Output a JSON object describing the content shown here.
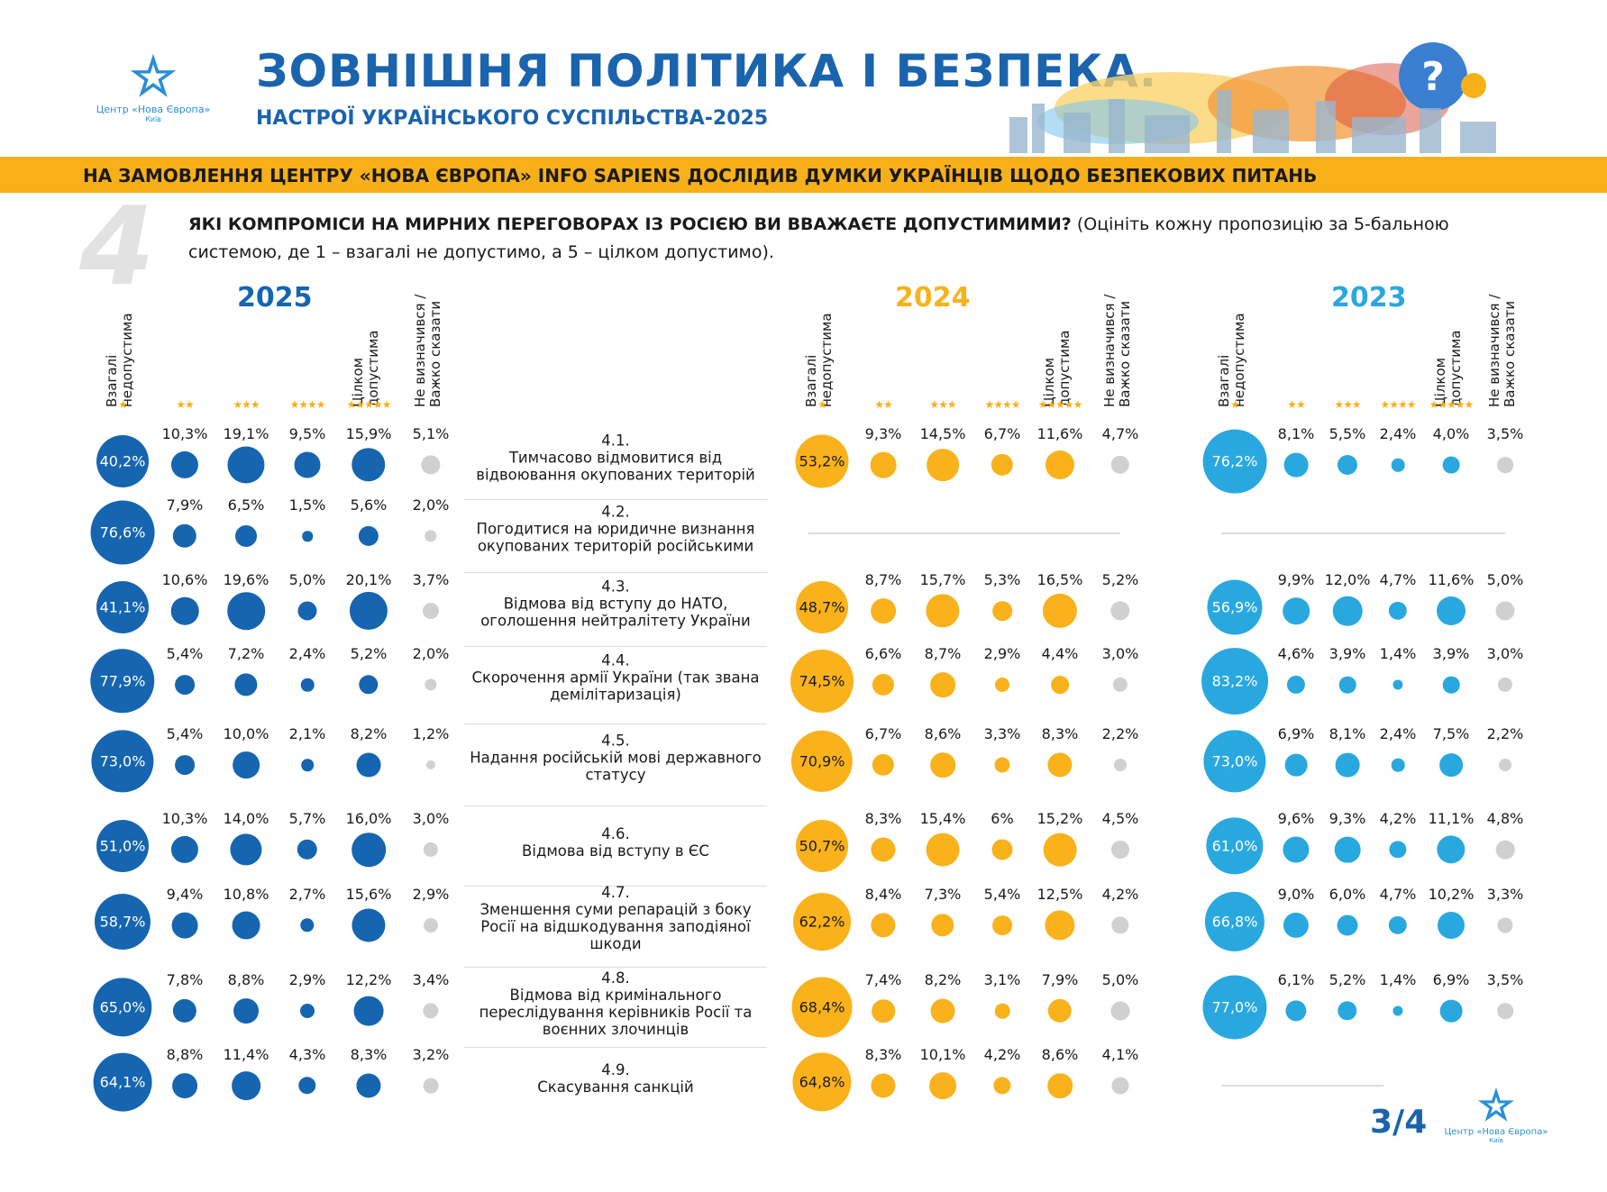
{
  "header": {
    "logo_name": "Центр «Нова Європа»",
    "logo_city": "Київ",
    "title": "ЗОВНІШНЯ ПОЛІТИКА І БЕЗПЕКА.",
    "subtitle": "НАСТРОЇ УКРАЇНСЬКОГО СУСПІЛЬСТВА-2025",
    "banner": "НА ЗАМОВЛЕННЯ ЦЕНТРУ «НОВА ЄВРОПА» INFO SAPIENS ДОСЛІДИВ ДУМКИ УКРАЇНЦІВ ЩОДО БЕЗПЕКОВИХ ПИТАНЬ"
  },
  "question": {
    "number": "4",
    "bold": "ЯКІ КОМПРОМІСИ НА МИРНИХ ПЕРЕГОВОРАХ ІЗ РОСІЄЮ ВИ ВВАЖАЄТЕ ДОПУСТИМИМИ?",
    "note": " (Оцініть кожну пропозицію за 5-бальною системою, де 1 – взагалі не допустимо, а 5 – цілком допустимо)."
  },
  "footer": {
    "page": "3/4"
  },
  "chart_data": {
    "type": "bubble-table",
    "columns": [
      {
        "header": "Взагалі недопустима",
        "stars": "★"
      },
      {
        "header": "",
        "stars": "★★"
      },
      {
        "header": "",
        "stars": "★★★"
      },
      {
        "header": "",
        "stars": "★★★★"
      },
      {
        "header": "Цілком допустима",
        "stars": "★★★★★"
      },
      {
        "header": "Не визначився / Важко сказати",
        "stars": ""
      }
    ],
    "undecided_color": "#d0d0d0",
    "items": [
      {
        "num": "4.1.",
        "text": "Тимчасово відмовитися від відвоювання окупованих територій"
      },
      {
        "num": "4.2.",
        "text": "Погодитися на юридичне визнання окупованих територій російськими"
      },
      {
        "num": "4.3.",
        "text": "Відмова від вступу до НАТО, оголошення нейтралітету України"
      },
      {
        "num": "4.4.",
        "text": "Скорочення армії України (так звана демілітаризація)"
      },
      {
        "num": "4.5.",
        "text": "Надання російській мові державного статусу"
      },
      {
        "num": "4.6.",
        "text": "Відмова від вступу в ЄС"
      },
      {
        "num": "4.7.",
        "text": "Зменшення суми репарацій з боку Росії на відшкодування заподіяної шкоди"
      },
      {
        "num": "4.8.",
        "text": "Відмова від кримінального переслідування керівників Росії та воєнних злочинців"
      },
      {
        "num": "4.9.",
        "text": "Скасування санкцій"
      }
    ],
    "years": [
      {
        "year": "2025",
        "color": "#1565b0",
        "big_text_color": "#ffffff",
        "rows": [
          [
            "40,2%",
            "10,3%",
            "19,1%",
            "9,5%",
            "15,9%",
            "5,1%"
          ],
          [
            "76,6%",
            "7,9%",
            "6,5%",
            "1,5%",
            "5,6%",
            "2,0%"
          ],
          [
            "41,1%",
            "10,6%",
            "19,6%",
            "5,0%",
            "20,1%",
            "3,7%"
          ],
          [
            "77,9%",
            "5,4%",
            "7,2%",
            "2,4%",
            "5,2%",
            "2,0%"
          ],
          [
            "73,0%",
            "5,4%",
            "10,0%",
            "2,1%",
            "8,2%",
            "1,2%"
          ],
          [
            "51,0%",
            "10,3%",
            "14,0%",
            "5,7%",
            "16,0%",
            "3,0%"
          ],
          [
            "58,7%",
            "9,4%",
            "10,8%",
            "2,7%",
            "15,6%",
            "2,9%"
          ],
          [
            "65,0%",
            "7,8%",
            "8,8%",
            "2,9%",
            "12,2%",
            "3,4%"
          ],
          [
            "64,1%",
            "8,8%",
            "11,4%",
            "4,3%",
            "8,3%",
            "3,2%"
          ]
        ]
      },
      {
        "year": "2024",
        "color": "#f9b21b",
        "big_text_color": "#1a1a1a",
        "rows": [
          [
            "53,2%",
            "9,3%",
            "14,5%",
            "6,7%",
            "11,6%",
            "4,7%"
          ],
          null,
          [
            "48,7%",
            "8,7%",
            "15,7%",
            "5,3%",
            "16,5%",
            "5,2%"
          ],
          [
            "74,5%",
            "6,6%",
            "8,7%",
            "2,9%",
            "4,4%",
            "3,0%"
          ],
          [
            "70,9%",
            "6,7%",
            "8,6%",
            "3,3%",
            "8,3%",
            "2,2%"
          ],
          [
            "50,7%",
            "8,3%",
            "15,4%",
            "6%",
            "15,2%",
            "4,5%"
          ],
          [
            "62,2%",
            "8,4%",
            "7,3%",
            "5,4%",
            "12,5%",
            "4,2%"
          ],
          [
            "68,4%",
            "7,4%",
            "8,2%",
            "3,1%",
            "7,9%",
            "5,0%"
          ],
          [
            "64,8%",
            "8,3%",
            "10,1%",
            "4,2%",
            "8,6%",
            "4,1%"
          ]
        ]
      },
      {
        "year": "2023",
        "color": "#29a8e0",
        "big_text_color": "#ffffff",
        "rows": [
          [
            "76,2%",
            "8,1%",
            "5,5%",
            "2,4%",
            "4,0%",
            "3,5%"
          ],
          null,
          [
            "56,9%",
            "9,9%",
            "12,0%",
            "4,7%",
            "11,6%",
            "5,0%"
          ],
          [
            "83,2%",
            "4,6%",
            "3,9%",
            "1,4%",
            "3,9%",
            "3,0%"
          ],
          [
            "73,0%",
            "6,9%",
            "8,1%",
            "2,4%",
            "7,5%",
            "2,2%"
          ],
          [
            "61,0%",
            "9,6%",
            "9,3%",
            "4,2%",
            "11,1%",
            "4,8%"
          ],
          [
            "66,8%",
            "9,0%",
            "6,0%",
            "4,7%",
            "10,2%",
            "3,3%"
          ],
          [
            "77,0%",
            "6,1%",
            "5,2%",
            "1,4%",
            "6,9%",
            "3,5%"
          ],
          null
        ]
      }
    ]
  }
}
